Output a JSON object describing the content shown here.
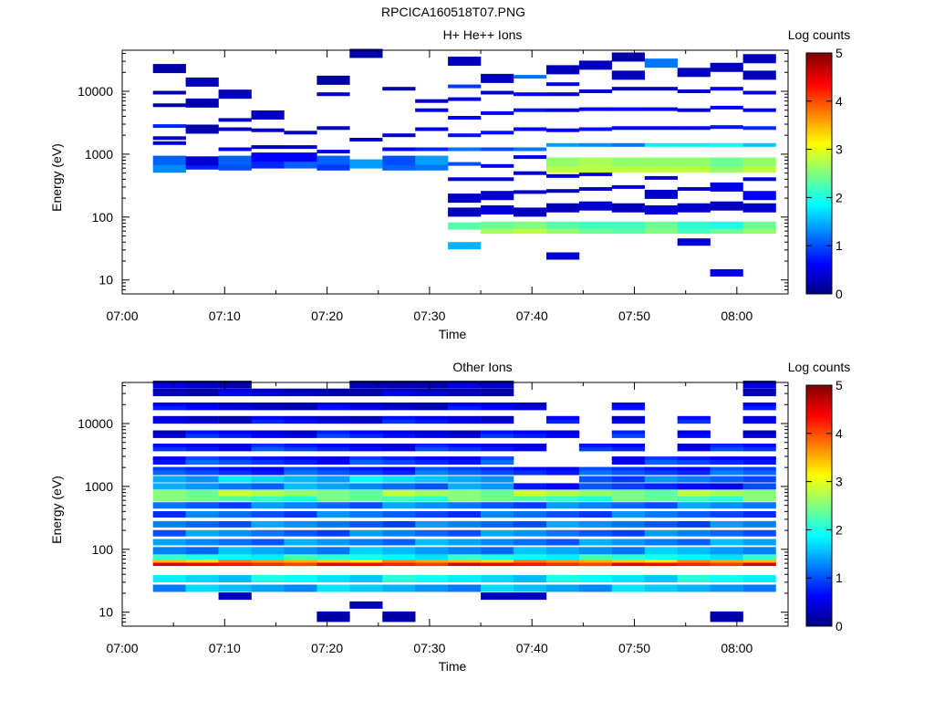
{
  "page_title": "RPCICA160518T07.PNG",
  "chart_data": [
    {
      "type": "heatmap",
      "title": "H+ He++ Ions",
      "xlabel": "Time",
      "ylabel": "Energy (eV)",
      "y_scale": "log",
      "ylim": [
        6,
        45000
      ],
      "xlim": [
        "07:00",
        "08:05"
      ],
      "x_ticks": [
        "07:00",
        "07:10",
        "07:20",
        "07:30",
        "07:40",
        "07:50",
        "08:00"
      ],
      "y_ticks": [
        "10",
        "100",
        "1000",
        "10000"
      ],
      "colorbar": {
        "label": "Log counts",
        "min": 0,
        "max": 5,
        "ticks": [
          "0",
          "1",
          "2",
          "3",
          "4",
          "5"
        ]
      },
      "columns_start": "07:03",
      "column_minutes": 3.2,
      "cells": [
        [
          0,
          2,
          600,
          1.3
        ],
        [
          0,
          2,
          800,
          1.1
        ],
        [
          0,
          3,
          1500,
          0.4
        ],
        [
          0,
          3,
          1800,
          0.3
        ],
        [
          0,
          3,
          2800,
          0.8
        ],
        [
          0,
          3,
          6000,
          0.2
        ],
        [
          0,
          3,
          9500,
          0.2
        ],
        [
          0,
          2,
          23000,
          0.2
        ],
        [
          1,
          1,
          650,
          0.8
        ],
        [
          1,
          2,
          780,
          0.4
        ],
        [
          1,
          2,
          2500,
          0.2
        ],
        [
          1,
          2,
          6500,
          0.2
        ],
        [
          1,
          2,
          14000,
          0.3
        ],
        [
          2,
          2,
          650,
          1.0
        ],
        [
          2,
          2,
          800,
          1.1
        ],
        [
          2,
          3,
          1200,
          0.6
        ],
        [
          2,
          3,
          2500,
          0.3
        ],
        [
          2,
          3,
          3500,
          0.4
        ],
        [
          2,
          2,
          9000,
          0.3
        ],
        [
          3,
          2,
          700,
          0.8
        ],
        [
          3,
          2,
          900,
          0.6
        ],
        [
          3,
          3,
          1300,
          0.3
        ],
        [
          3,
          3,
          2400,
          0.3
        ],
        [
          3,
          2,
          4200,
          0.3
        ],
        [
          4,
          2,
          700,
          1.1
        ],
        [
          4,
          2,
          900,
          0.6
        ],
        [
          4,
          3,
          1300,
          0.4
        ],
        [
          4,
          3,
          2200,
          0.3
        ],
        [
          5,
          2,
          650,
          0.9
        ],
        [
          5,
          2,
          800,
          1.1
        ],
        [
          5,
          3,
          1100,
          0.5
        ],
        [
          5,
          3,
          2600,
          0.3
        ],
        [
          5,
          3,
          9000,
          0.3
        ],
        [
          5,
          2,
          15000,
          0.2
        ],
        [
          6,
          2,
          700,
          1.4
        ],
        [
          6,
          3,
          1700,
          0.3
        ],
        [
          6,
          2,
          40000,
          0.2
        ],
        [
          7,
          2,
          650,
          1.1
        ],
        [
          7,
          2,
          800,
          1.0
        ],
        [
          7,
          3,
          1200,
          0.6
        ],
        [
          7,
          3,
          2000,
          0.4
        ],
        [
          7,
          3,
          11000,
          0.2
        ],
        [
          8,
          2,
          650,
          1.2
        ],
        [
          8,
          2,
          800,
          1.4
        ],
        [
          8,
          3,
          1200,
          0.8
        ],
        [
          8,
          3,
          2500,
          0.5
        ],
        [
          8,
          3,
          5000,
          0.6
        ],
        [
          8,
          3,
          7000,
          0.3
        ],
        [
          9,
          1,
          35,
          1.5
        ],
        [
          9,
          1,
          72,
          2.3
        ],
        [
          9,
          2,
          120,
          0.3
        ],
        [
          9,
          2,
          200,
          0.3
        ],
        [
          9,
          3,
          400,
          0.4
        ],
        [
          9,
          3,
          700,
          1.0
        ],
        [
          9,
          3,
          1200,
          1.2
        ],
        [
          9,
          3,
          2000,
          0.7
        ],
        [
          9,
          3,
          3800,
          0.6
        ],
        [
          9,
          3,
          7500,
          0.5
        ],
        [
          9,
          3,
          12000,
          0.9
        ],
        [
          9,
          2,
          30000,
          0.3
        ],
        [
          10,
          1,
          62,
          2.7
        ],
        [
          10,
          1,
          74,
          2.4
        ],
        [
          10,
          2,
          130,
          0.4
        ],
        [
          10,
          2,
          220,
          0.4
        ],
        [
          10,
          3,
          400,
          0.4
        ],
        [
          10,
          3,
          650,
          0.5
        ],
        [
          10,
          3,
          1200,
          1.0
        ],
        [
          10,
          3,
          2200,
          0.7
        ],
        [
          10,
          3,
          4500,
          0.6
        ],
        [
          10,
          3,
          9500,
          0.3
        ],
        [
          10,
          2,
          16000,
          0.3
        ],
        [
          11,
          1,
          62,
          2.8
        ],
        [
          11,
          1,
          74,
          2.5
        ],
        [
          11,
          2,
          120,
          0.3
        ],
        [
          11,
          3,
          250,
          0.4
        ],
        [
          11,
          3,
          500,
          0.4
        ],
        [
          11,
          3,
          900,
          0.6
        ],
        [
          11,
          3,
          1200,
          1.2
        ],
        [
          11,
          3,
          2500,
          0.6
        ],
        [
          11,
          3,
          5000,
          0.7
        ],
        [
          11,
          3,
          9000,
          0.6
        ],
        [
          11,
          3,
          17000,
          1.2
        ],
        [
          12,
          1,
          24,
          0.4
        ],
        [
          12,
          1,
          62,
          2.6
        ],
        [
          12,
          1,
          74,
          2.3
        ],
        [
          12,
          2,
          140,
          0.3
        ],
        [
          12,
          3,
          260,
          0.3
        ],
        [
          12,
          3,
          450,
          0.4
        ],
        [
          12,
          2,
          600,
          2.8
        ],
        [
          12,
          2,
          750,
          2.6
        ],
        [
          12,
          3,
          1400,
          1.4
        ],
        [
          12,
          3,
          2400,
          0.6
        ],
        [
          12,
          3,
          5000,
          0.5
        ],
        [
          12,
          3,
          9000,
          0.4
        ],
        [
          12,
          3,
          13000,
          0.5
        ],
        [
          12,
          2,
          22000,
          0.3
        ],
        [
          13,
          1,
          62,
          2.4
        ],
        [
          13,
          1,
          74,
          2.2
        ],
        [
          13,
          2,
          150,
          0.4
        ],
        [
          13,
          3,
          280,
          0.4
        ],
        [
          13,
          3,
          480,
          0.4
        ],
        [
          13,
          2,
          600,
          2.8
        ],
        [
          13,
          2,
          750,
          2.7
        ],
        [
          13,
          3,
          1400,
          1.3
        ],
        [
          13,
          3,
          2500,
          0.7
        ],
        [
          13,
          3,
          5200,
          0.5
        ],
        [
          13,
          3,
          10000,
          0.5
        ],
        [
          13,
          2,
          26000,
          0.3
        ],
        [
          14,
          1,
          62,
          2.3
        ],
        [
          14,
          1,
          74,
          2.2
        ],
        [
          14,
          2,
          140,
          0.3
        ],
        [
          14,
          3,
          300,
          0.4
        ],
        [
          14,
          2,
          600,
          2.8
        ],
        [
          14,
          2,
          750,
          2.6
        ],
        [
          14,
          3,
          1400,
          1.2
        ],
        [
          14,
          3,
          2600,
          0.6
        ],
        [
          14,
          3,
          5200,
          0.6
        ],
        [
          14,
          3,
          11000,
          0.3
        ],
        [
          14,
          2,
          18000,
          0.3
        ],
        [
          14,
          2,
          35000,
          0.2
        ],
        [
          15,
          1,
          62,
          2.5
        ],
        [
          15,
          1,
          74,
          2.4
        ],
        [
          15,
          2,
          130,
          0.4
        ],
        [
          15,
          2,
          230,
          0.4
        ],
        [
          15,
          3,
          420,
          0.4
        ],
        [
          15,
          2,
          600,
          2.8
        ],
        [
          15,
          2,
          750,
          2.6
        ],
        [
          15,
          3,
          1400,
          1.8
        ],
        [
          15,
          3,
          2600,
          0.6
        ],
        [
          15,
          3,
          5200,
          0.5
        ],
        [
          15,
          3,
          11000,
          0.3
        ],
        [
          15,
          2,
          28000,
          1.2
        ],
        [
          16,
          1,
          40,
          0.4
        ],
        [
          16,
          1,
          62,
          2.2
        ],
        [
          16,
          1,
          74,
          2.1
        ],
        [
          16,
          2,
          140,
          0.4
        ],
        [
          16,
          3,
          280,
          0.4
        ],
        [
          16,
          2,
          600,
          2.8
        ],
        [
          16,
          2,
          750,
          2.6
        ],
        [
          16,
          3,
          1400,
          1.8
        ],
        [
          16,
          3,
          2600,
          0.6
        ],
        [
          16,
          3,
          5000,
          0.5
        ],
        [
          16,
          3,
          10000,
          0.4
        ],
        [
          16,
          2,
          20000,
          0.3
        ],
        [
          17,
          1,
          13,
          0.5
        ],
        [
          17,
          1,
          62,
          2.4
        ],
        [
          17,
          1,
          74,
          2.0
        ],
        [
          17,
          2,
          150,
          0.3
        ],
        [
          17,
          2,
          300,
          0.5
        ],
        [
          17,
          2,
          600,
          2.6
        ],
        [
          17,
          2,
          750,
          2.4
        ],
        [
          17,
          3,
          1400,
          1.9
        ],
        [
          17,
          3,
          2700,
          0.7
        ],
        [
          17,
          3,
          5500,
          0.6
        ],
        [
          17,
          3,
          11000,
          0.5
        ],
        [
          17,
          2,
          24000,
          0.3
        ],
        [
          18,
          1,
          62,
          2.6
        ],
        [
          18,
          1,
          74,
          2.4
        ],
        [
          18,
          2,
          140,
          0.4
        ],
        [
          18,
          2,
          220,
          0.6
        ],
        [
          18,
          3,
          400,
          0.4
        ],
        [
          18,
          2,
          600,
          2.8
        ],
        [
          18,
          2,
          750,
          2.6
        ],
        [
          18,
          3,
          1400,
          1.6
        ],
        [
          18,
          3,
          2600,
          0.8
        ],
        [
          18,
          3,
          5000,
          0.6
        ],
        [
          18,
          3,
          9500,
          0.4
        ],
        [
          18,
          2,
          18000,
          0.3
        ],
        [
          18,
          2,
          33000,
          0.3
        ]
      ]
    },
    {
      "type": "heatmap",
      "title": "Other Ions",
      "xlabel": "Time",
      "ylabel": "Energy (eV)",
      "y_scale": "log",
      "ylim": [
        6,
        45000
      ],
      "xlim": [
        "07:00",
        "08:05"
      ],
      "x_ticks": [
        "07:00",
        "07:10",
        "07:20",
        "07:30",
        "07:40",
        "07:50",
        "08:00"
      ],
      "y_ticks": [
        "10",
        "100",
        "1000",
        "10000"
      ],
      "colorbar": {
        "label": "Log counts",
        "min": 0,
        "max": 5,
        "ticks": [
          "0",
          "1",
          "2",
          "3",
          "4",
          "5"
        ]
      },
      "columns_start": "07:03",
      "column_minutes": 3.2,
      "band_profile": [
        [
          24,
          1.5
        ],
        [
          34,
          1.8
        ],
        [
          62,
          4.3
        ],
        [
          70,
          3.5
        ],
        [
          78,
          2.0
        ],
        [
          95,
          1.4
        ],
        [
          130,
          1.3
        ],
        [
          180,
          1.2
        ],
        [
          250,
          1.2
        ],
        [
          360,
          1.1
        ],
        [
          500,
          1.2
        ],
        [
          650,
          2.3
        ],
        [
          780,
          2.6
        ],
        [
          1000,
          1.3
        ],
        [
          1300,
          1.6
        ],
        [
          1700,
          1.0
        ],
        [
          2500,
          0.9
        ],
        [
          4000,
          0.8
        ],
        [
          6500,
          0.7
        ],
        [
          11000,
          0.6
        ],
        [
          18000,
          0.5
        ],
        [
          30000,
          0.4
        ],
        [
          40000,
          0.3
        ]
      ],
      "column_max_energy": [
        40000,
        40000,
        40000,
        38000,
        36000,
        38000,
        42000,
        40000,
        42000,
        40000,
        40000,
        18000,
        14000,
        4500,
        28000,
        3200,
        16000,
        6000,
        40000
      ],
      "column_gaps": [
        [],
        [],
        [],
        [],
        [],
        [],
        [],
        [],
        [],
        [],
        [],
        [
          1300,
          2500,
          9000
        ],
        [
          1300,
          2500,
          4000
        ],
        [
          2500
        ],
        [],
        [],
        [],
        [],
        []
      ],
      "cells": [
        [
          2,
          1,
          18,
          0.3
        ],
        [
          5,
          1,
          9,
          0.2
        ],
        [
          5,
          1,
          8,
          0.2
        ],
        [
          6,
          1,
          13,
          0.3
        ],
        [
          7,
          1,
          9,
          0.2
        ],
        [
          7,
          1,
          8,
          0.2
        ],
        [
          10,
          1,
          18,
          0.3
        ],
        [
          11,
          1,
          18,
          0.3
        ],
        [
          17,
          1,
          9,
          0.2
        ],
        [
          17,
          1,
          8,
          0.2
        ]
      ]
    }
  ]
}
